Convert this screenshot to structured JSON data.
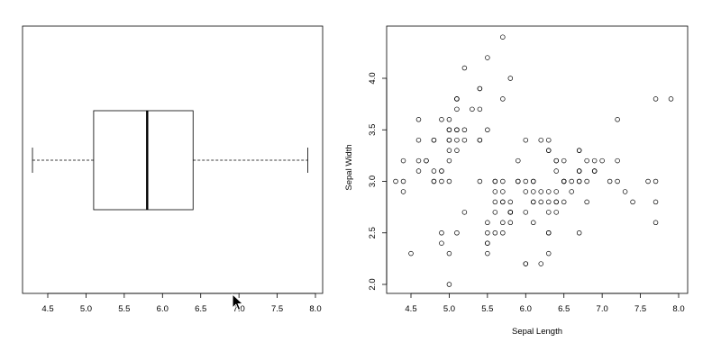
{
  "colors": {
    "axis": "#000000",
    "box": "#000000",
    "point": "#000000",
    "background": "#ffffff"
  },
  "cursor_icon": "arrow-cursor-icon",
  "chart_data": [
    {
      "type": "boxplot",
      "orientation": "horizontal",
      "title": "",
      "xlabel": "",
      "ylabel": "",
      "xlim": [
        4.3,
        7.9
      ],
      "x_ticks": [
        "4.5",
        "5.0",
        "5.5",
        "6.0",
        "6.5",
        "7.0",
        "7.5",
        "8.0"
      ],
      "stats": {
        "min": 4.3,
        "q1": 5.1,
        "median": 5.8,
        "q3": 6.4,
        "max": 7.9
      }
    },
    {
      "type": "scatter",
      "title": "",
      "xlabel": "Sepal Length",
      "ylabel": "Sepal Width",
      "xlim": [
        4.3,
        7.9
      ],
      "ylim": [
        2.0,
        4.4
      ],
      "x_ticks": [
        "4.5",
        "5.0",
        "5.5",
        "6.0",
        "6.5",
        "7.0",
        "7.5",
        "8.0"
      ],
      "y_ticks": [
        "2.0",
        "2.5",
        "3.0",
        "3.5",
        "4.0"
      ],
      "points": [
        [
          5.1,
          3.5
        ],
        [
          4.9,
          3.0
        ],
        [
          4.7,
          3.2
        ],
        [
          4.6,
          3.1
        ],
        [
          5.0,
          3.6
        ],
        [
          5.4,
          3.9
        ],
        [
          4.6,
          3.4
        ],
        [
          5.0,
          3.4
        ],
        [
          4.4,
          2.9
        ],
        [
          4.9,
          3.1
        ],
        [
          5.4,
          3.7
        ],
        [
          4.8,
          3.4
        ],
        [
          4.8,
          3.0
        ],
        [
          4.3,
          3.0
        ],
        [
          5.8,
          4.0
        ],
        [
          5.7,
          4.4
        ],
        [
          5.4,
          3.9
        ],
        [
          5.1,
          3.5
        ],
        [
          5.7,
          3.8
        ],
        [
          5.1,
          3.8
        ],
        [
          5.4,
          3.4
        ],
        [
          5.1,
          3.7
        ],
        [
          4.6,
          3.6
        ],
        [
          5.1,
          3.3
        ],
        [
          4.8,
          3.4
        ],
        [
          5.0,
          3.0
        ],
        [
          5.0,
          3.4
        ],
        [
          5.2,
          3.5
        ],
        [
          5.2,
          3.4
        ],
        [
          4.7,
          3.2
        ],
        [
          4.8,
          3.1
        ],
        [
          5.4,
          3.4
        ],
        [
          5.2,
          4.1
        ],
        [
          5.5,
          4.2
        ],
        [
          4.9,
          3.1
        ],
        [
          5.0,
          3.2
        ],
        [
          5.5,
          3.5
        ],
        [
          4.9,
          3.6
        ],
        [
          4.4,
          3.0
        ],
        [
          5.1,
          3.4
        ],
        [
          5.0,
          3.5
        ],
        [
          4.5,
          2.3
        ],
        [
          4.4,
          3.2
        ],
        [
          5.0,
          3.5
        ],
        [
          5.1,
          3.8
        ],
        [
          4.8,
          3.0
        ],
        [
          5.1,
          3.8
        ],
        [
          4.6,
          3.2
        ],
        [
          5.3,
          3.7
        ],
        [
          5.0,
          3.3
        ],
        [
          7.0,
          3.2
        ],
        [
          6.4,
          3.2
        ],
        [
          6.9,
          3.1
        ],
        [
          5.5,
          2.3
        ],
        [
          6.5,
          2.8
        ],
        [
          5.7,
          2.8
        ],
        [
          6.3,
          3.3
        ],
        [
          4.9,
          2.4
        ],
        [
          6.6,
          2.9
        ],
        [
          5.2,
          2.7
        ],
        [
          5.0,
          2.0
        ],
        [
          5.9,
          3.0
        ],
        [
          6.0,
          2.2
        ],
        [
          6.1,
          2.9
        ],
        [
          5.6,
          2.9
        ],
        [
          6.7,
          3.1
        ],
        [
          5.6,
          3.0
        ],
        [
          5.8,
          2.7
        ],
        [
          6.2,
          2.2
        ],
        [
          5.6,
          2.5
        ],
        [
          5.9,
          3.2
        ],
        [
          6.1,
          2.8
        ],
        [
          6.3,
          2.5
        ],
        [
          6.1,
          2.8
        ],
        [
          6.4,
          2.9
        ],
        [
          6.6,
          3.0
        ],
        [
          6.8,
          2.8
        ],
        [
          6.7,
          3.0
        ],
        [
          6.0,
          2.9
        ],
        [
          5.7,
          2.6
        ],
        [
          5.5,
          2.4
        ],
        [
          5.5,
          2.4
        ],
        [
          5.8,
          2.7
        ],
        [
          6.0,
          2.7
        ],
        [
          5.4,
          3.0
        ],
        [
          6.0,
          3.4
        ],
        [
          6.7,
          3.1
        ],
        [
          6.3,
          2.3
        ],
        [
          5.6,
          3.0
        ],
        [
          5.5,
          2.5
        ],
        [
          5.5,
          2.6
        ],
        [
          6.1,
          3.0
        ],
        [
          5.8,
          2.6
        ],
        [
          5.0,
          2.3
        ],
        [
          5.6,
          2.7
        ],
        [
          5.7,
          3.0
        ],
        [
          5.7,
          2.9
        ],
        [
          6.2,
          2.9
        ],
        [
          5.1,
          2.5
        ],
        [
          5.7,
          2.8
        ],
        [
          6.3,
          3.3
        ],
        [
          5.8,
          2.7
        ],
        [
          7.1,
          3.0
        ],
        [
          6.3,
          2.9
        ],
        [
          6.5,
          3.0
        ],
        [
          7.6,
          3.0
        ],
        [
          4.9,
          2.5
        ],
        [
          7.3,
          2.9
        ],
        [
          6.7,
          2.5
        ],
        [
          7.2,
          3.6
        ],
        [
          6.5,
          3.2
        ],
        [
          6.4,
          2.7
        ],
        [
          6.8,
          3.0
        ],
        [
          5.7,
          2.5
        ],
        [
          5.8,
          2.8
        ],
        [
          6.4,
          3.2
        ],
        [
          6.5,
          3.0
        ],
        [
          7.7,
          3.8
        ],
        [
          7.7,
          2.6
        ],
        [
          6.0,
          2.2
        ],
        [
          6.9,
          3.2
        ],
        [
          5.6,
          2.8
        ],
        [
          7.7,
          2.8
        ],
        [
          6.3,
          2.7
        ],
        [
          6.7,
          3.3
        ],
        [
          7.2,
          3.2
        ],
        [
          6.2,
          2.8
        ],
        [
          6.1,
          3.0
        ],
        [
          6.4,
          2.8
        ],
        [
          7.2,
          3.0
        ],
        [
          7.4,
          2.8
        ],
        [
          7.9,
          3.8
        ],
        [
          6.4,
          2.8
        ],
        [
          6.3,
          2.8
        ],
        [
          6.1,
          2.6
        ],
        [
          7.7,
          3.0
        ],
        [
          6.3,
          3.4
        ],
        [
          6.4,
          3.1
        ],
        [
          6.0,
          3.0
        ],
        [
          6.9,
          3.1
        ],
        [
          6.7,
          3.1
        ],
        [
          6.9,
          3.1
        ],
        [
          5.8,
          2.7
        ],
        [
          6.8,
          3.2
        ],
        [
          6.7,
          3.3
        ],
        [
          6.7,
          3.0
        ],
        [
          6.3,
          2.5
        ],
        [
          6.5,
          3.0
        ],
        [
          6.2,
          3.4
        ],
        [
          5.9,
          3.0
        ]
      ]
    }
  ]
}
